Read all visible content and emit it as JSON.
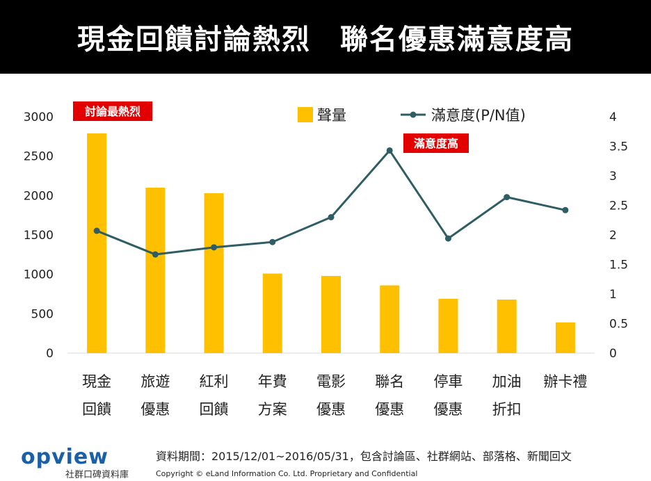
{
  "header": {
    "title": "現金回饋討論熱烈　聯名優惠滿意度高"
  },
  "annotations": {
    "hot": "討論最熱烈",
    "satisfaction": "滿意度高"
  },
  "colors": {
    "bar": "#FFC000",
    "line": "#2E5E63",
    "label_bg": "#E30000",
    "logo": "#1a5fa8"
  },
  "chart_data": {
    "type": "bar",
    "categories": [
      [
        "現金",
        "回饋"
      ],
      [
        "旅遊",
        "優惠"
      ],
      [
        "紅利",
        "回饋"
      ],
      [
        "年費",
        "方案"
      ],
      [
        "電影",
        "優惠"
      ],
      [
        "聯名",
        "優惠"
      ],
      [
        "停車",
        "優惠"
      ],
      [
        "加油",
        "折扣"
      ],
      [
        "辦卡禮",
        ""
      ]
    ],
    "series": [
      {
        "name": "聲量",
        "type": "bar",
        "axis": "left",
        "values": [
          2790,
          2100,
          2030,
          1010,
          980,
          860,
          690,
          680,
          390
        ]
      },
      {
        "name": "滿意度(P/N值)",
        "type": "line",
        "axis": "right",
        "values": [
          2.07,
          1.67,
          1.79,
          1.88,
          2.3,
          3.43,
          1.94,
          2.64,
          2.42
        ]
      }
    ],
    "y_left": {
      "ticks": [
        "0",
        "500",
        "1000",
        "1500",
        "2000",
        "2500",
        "3000"
      ],
      "ylim": [
        0,
        3000
      ]
    },
    "y_right": {
      "ticks": [
        "0",
        "0.5",
        "1",
        "1.5",
        "2",
        "2.5",
        "3",
        "3.5",
        "4"
      ],
      "ylim": [
        0,
        4
      ]
    },
    "legend_position": "top-center",
    "grid": false
  },
  "footer": {
    "note": "資料期間：2015/12/01~2016/05/31，包含討論區、社群網站、部落格、新聞回文",
    "copyright": "Copyright © eLand Information Co. Ltd. Proprietary and Confidential",
    "logo_text": "opview",
    "logo_sub": "社群口碑資料庫"
  }
}
